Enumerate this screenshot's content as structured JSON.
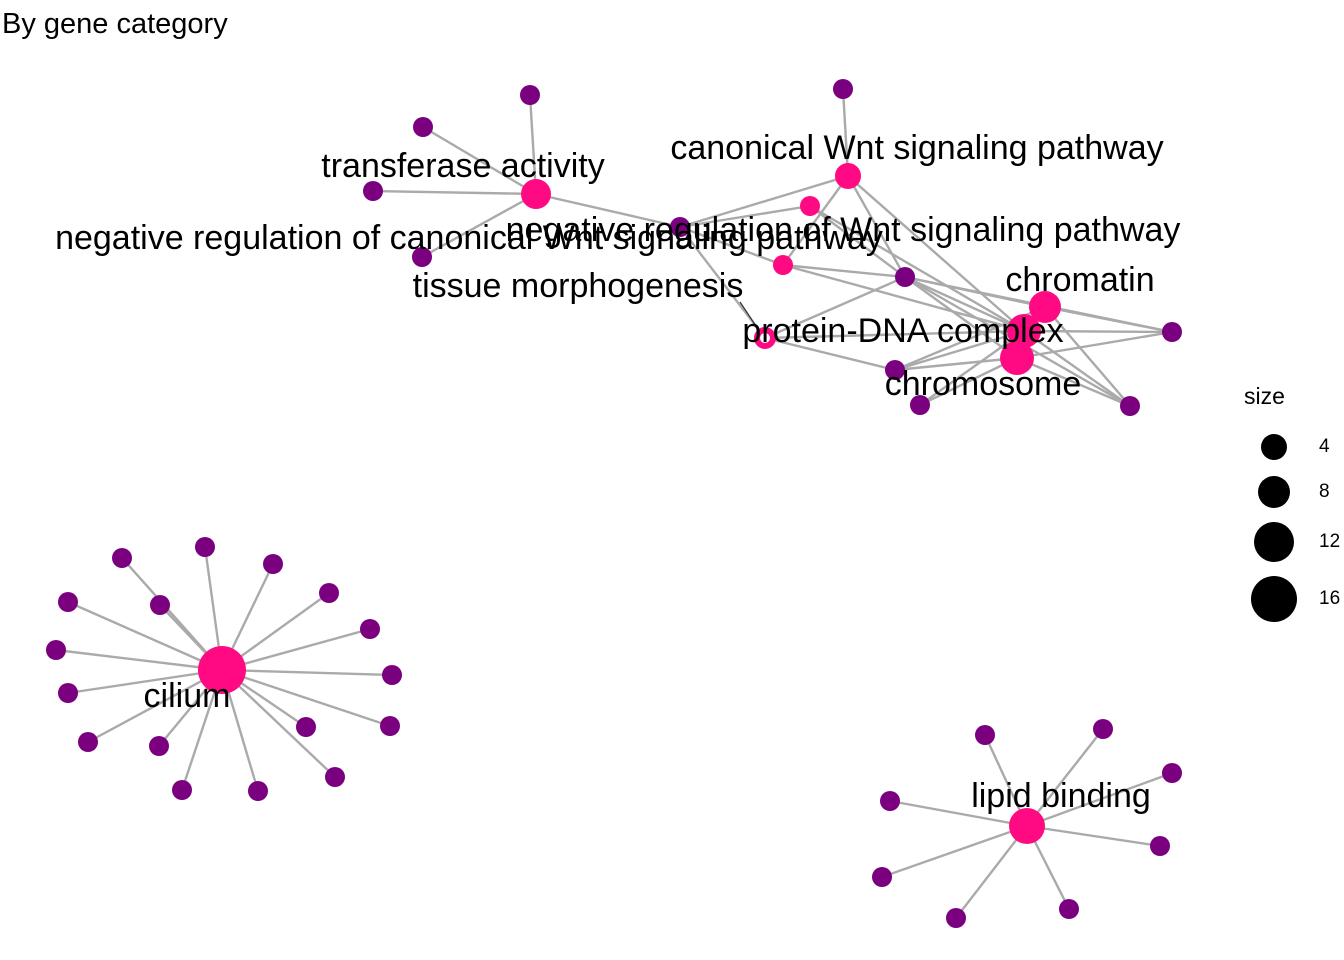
{
  "title": "By gene category",
  "colors": {
    "category": "#FF0A82",
    "gene": "#7A0080",
    "edge": "#AAAAAA",
    "legend_dot": "#000000"
  },
  "category_labels": {
    "transferase": "transferase activity",
    "wnt_canonical": "canonical Wnt signaling pathway",
    "wnt_neg": "negative regulation of canonical Wnt signaling pathway",
    "wnt_reg": "negative regulation of Wnt signaling pathway",
    "tissue": "tissue morphogenesis",
    "protein_dna": "protein-DNA complex",
    "chromatin": "chromatin",
    "chromosome": "chromosome",
    "cilium": "cilium",
    "lipid": "lipid binding"
  },
  "legend": {
    "title": "size",
    "entries": [
      "4",
      "8",
      "12",
      "16"
    ]
  }
}
